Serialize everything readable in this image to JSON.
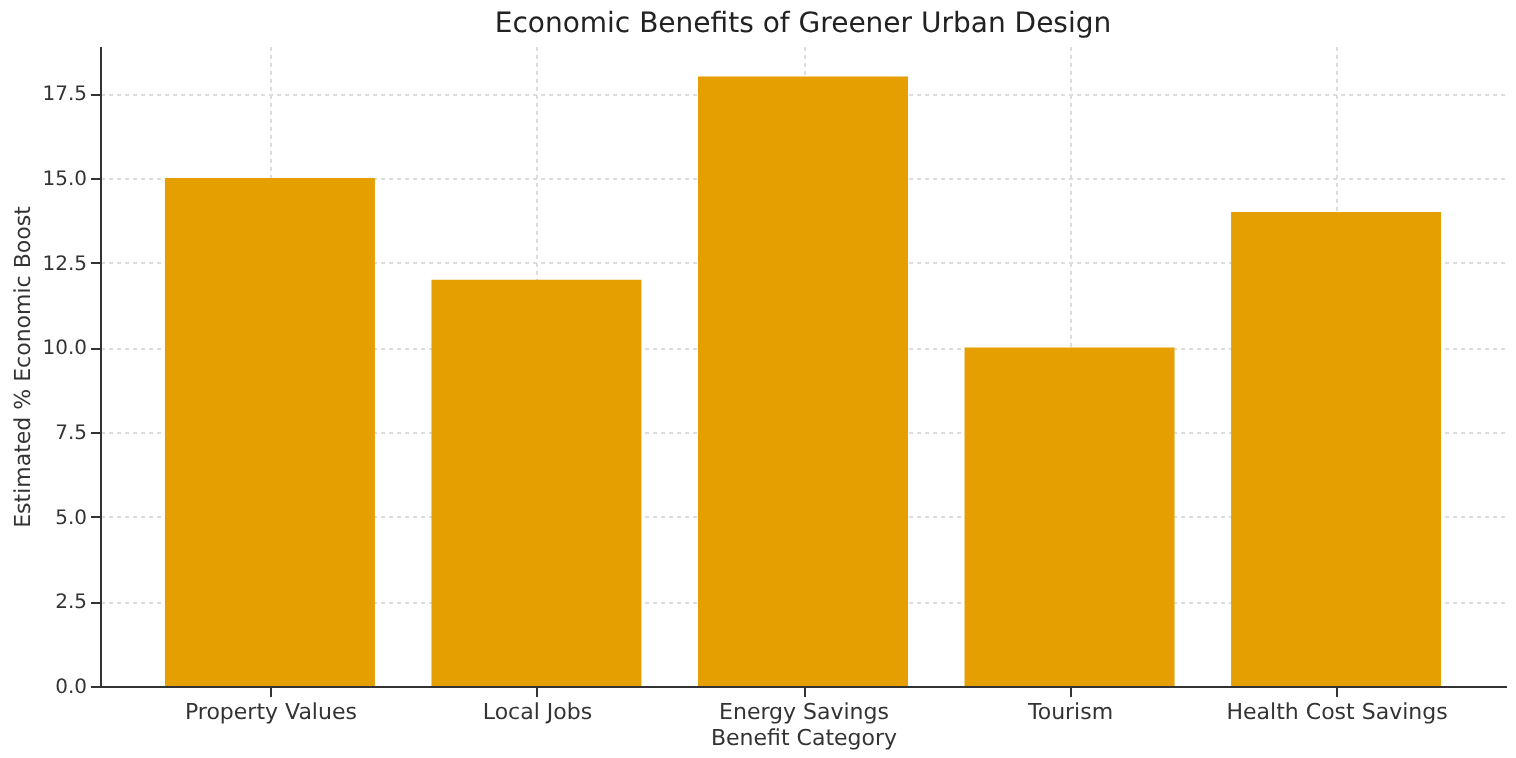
{
  "chart_data": {
    "type": "bar",
    "title": "Economic Benefits of Greener Urban Design",
    "xlabel": "Benefit Category",
    "ylabel": "Estimated % Economic Boost",
    "categories": [
      "Property Values",
      "Local Jobs",
      "Energy Savings",
      "Tourism",
      "Health Cost Savings"
    ],
    "values": [
      15,
      12,
      18,
      10,
      14
    ],
    "color": "#e69f00",
    "ylim": [
      0,
      18.9
    ],
    "yticks": [
      {
        "value": 0,
        "label": "0.0"
      },
      {
        "value": 2.5,
        "label": "2.5"
      },
      {
        "value": 5,
        "label": "5.0"
      },
      {
        "value": 7.5,
        "label": "7.5"
      },
      {
        "value": 10,
        "label": "10.0"
      },
      {
        "value": 12.5,
        "label": "12.5"
      },
      {
        "value": 15,
        "label": "15.0"
      },
      {
        "value": 17.5,
        "label": "17.5"
      }
    ],
    "grid": true
  }
}
